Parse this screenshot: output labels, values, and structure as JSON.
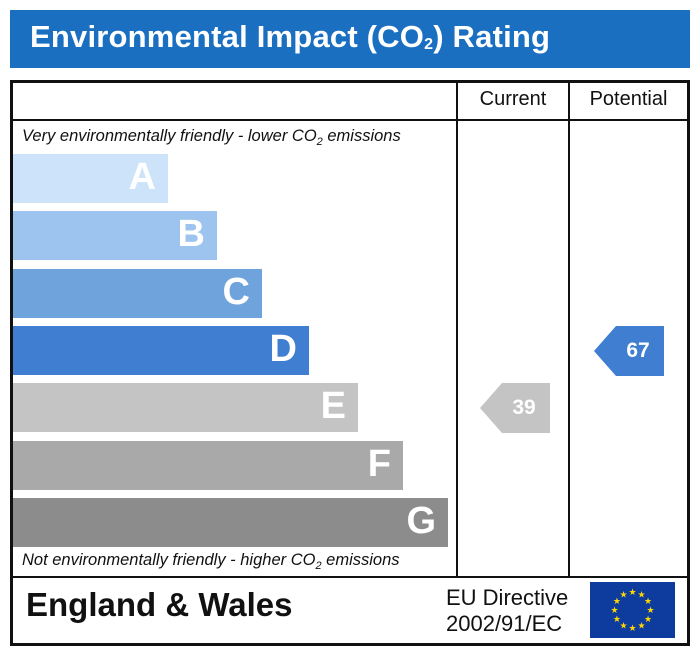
{
  "header": {
    "title_prefix": "Environmental Impact (CO",
    "title_sub": "2",
    "title_suffix": ") Rating"
  },
  "columns": {
    "current": "Current",
    "potential": "Potential"
  },
  "notes": {
    "top_prefix": "Very environmentally friendly - lower CO",
    "top_sub": "2",
    "top_suffix": " emissions",
    "bottom_prefix": "Not environmentally friendly - higher CO",
    "bottom_sub": "2",
    "bottom_suffix": " emissions"
  },
  "chart_data": {
    "type": "bar",
    "bands": [
      {
        "letter": "A",
        "color": "#cce3fa"
      },
      {
        "letter": "B",
        "color": "#9cc4ee"
      },
      {
        "letter": "C",
        "color": "#6fa3dc"
      },
      {
        "letter": "D",
        "color": "#3f7ed0"
      },
      {
        "letter": "E",
        "color": "#c4c4c4"
      },
      {
        "letter": "F",
        "color": "#a9a9a9"
      },
      {
        "letter": "G",
        "color": "#8c8c8c"
      }
    ],
    "current": {
      "value": 39,
      "color": "#c4c4c4"
    },
    "potential": {
      "value": 67,
      "color": "#3f7ed0"
    }
  },
  "footer": {
    "region": "England & Wales",
    "directive_line1": "EU Directive",
    "directive_line2": "2002/91/EC"
  }
}
